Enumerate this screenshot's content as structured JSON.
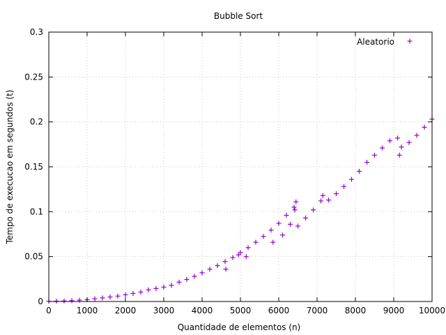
{
  "chart_data": {
    "type": "scatter",
    "title": "Bubble Sort",
    "xlabel": "Quantidade de elementos (n)",
    "ylabel": "Tempo de execucao em segundos (t)",
    "xlim": [
      0,
      10000
    ],
    "ylim": [
      0,
      0.3
    ],
    "xticks": [
      0,
      1000,
      2000,
      3000,
      4000,
      5000,
      6000,
      7000,
      8000,
      9000,
      10000
    ],
    "yticks": [
      0,
      0.05,
      0.1,
      0.15,
      0.2,
      0.25,
      0.3
    ],
    "xtick_labels": [
      "0",
      "1000",
      "2000",
      "3000",
      "4000",
      "5000",
      "6000",
      "7000",
      "8000",
      "9000",
      "10000"
    ],
    "ytick_labels": [
      "0",
      "0.05",
      "0.1",
      "0.15",
      "0.2",
      "0.25",
      "0.3"
    ],
    "grid": true,
    "legend_position": "top-right",
    "series": [
      {
        "name": "Aleatorio",
        "color": "#9400d3",
        "marker": "plus",
        "x": [
          0,
          200,
          400,
          600,
          800,
          1000,
          1200,
          1400,
          1600,
          1800,
          2000,
          2200,
          2400,
          2600,
          2800,
          3000,
          3200,
          3400,
          3600,
          3800,
          4000,
          4200,
          4400,
          4600,
          4800,
          5000,
          5200,
          5400,
          5600,
          5800,
          6000,
          6200,
          6400,
          6450,
          6500,
          6700,
          6900,
          7100,
          7150,
          7300,
          7500,
          7700,
          7900,
          8100,
          8300,
          8500,
          8700,
          8900,
          9100,
          9150,
          9200,
          9400,
          9600,
          9800,
          10000,
          4620,
          4950,
          5150,
          5850,
          6100,
          6300,
          6420
        ],
        "y": [
          0.0003,
          0.0004,
          0.0006,
          0.001,
          0.0015,
          0.002,
          0.003,
          0.004,
          0.005,
          0.006,
          0.0075,
          0.009,
          0.0105,
          0.013,
          0.0145,
          0.016,
          0.018,
          0.0215,
          0.0245,
          0.028,
          0.032,
          0.036,
          0.04,
          0.0445,
          0.049,
          0.0545,
          0.06,
          0.066,
          0.0725,
          0.0795,
          0.087,
          0.096,
          0.105,
          0.111,
          0.084,
          0.093,
          0.102,
          0.112,
          0.118,
          0.113,
          0.12,
          0.128,
          0.136,
          0.145,
          0.155,
          0.163,
          0.171,
          0.179,
          0.182,
          0.163,
          0.172,
          0.177,
          0.185,
          0.194,
          0.203,
          0.036,
          0.052,
          0.05,
          0.066,
          0.074,
          0.086,
          0.102
        ]
      }
    ]
  }
}
